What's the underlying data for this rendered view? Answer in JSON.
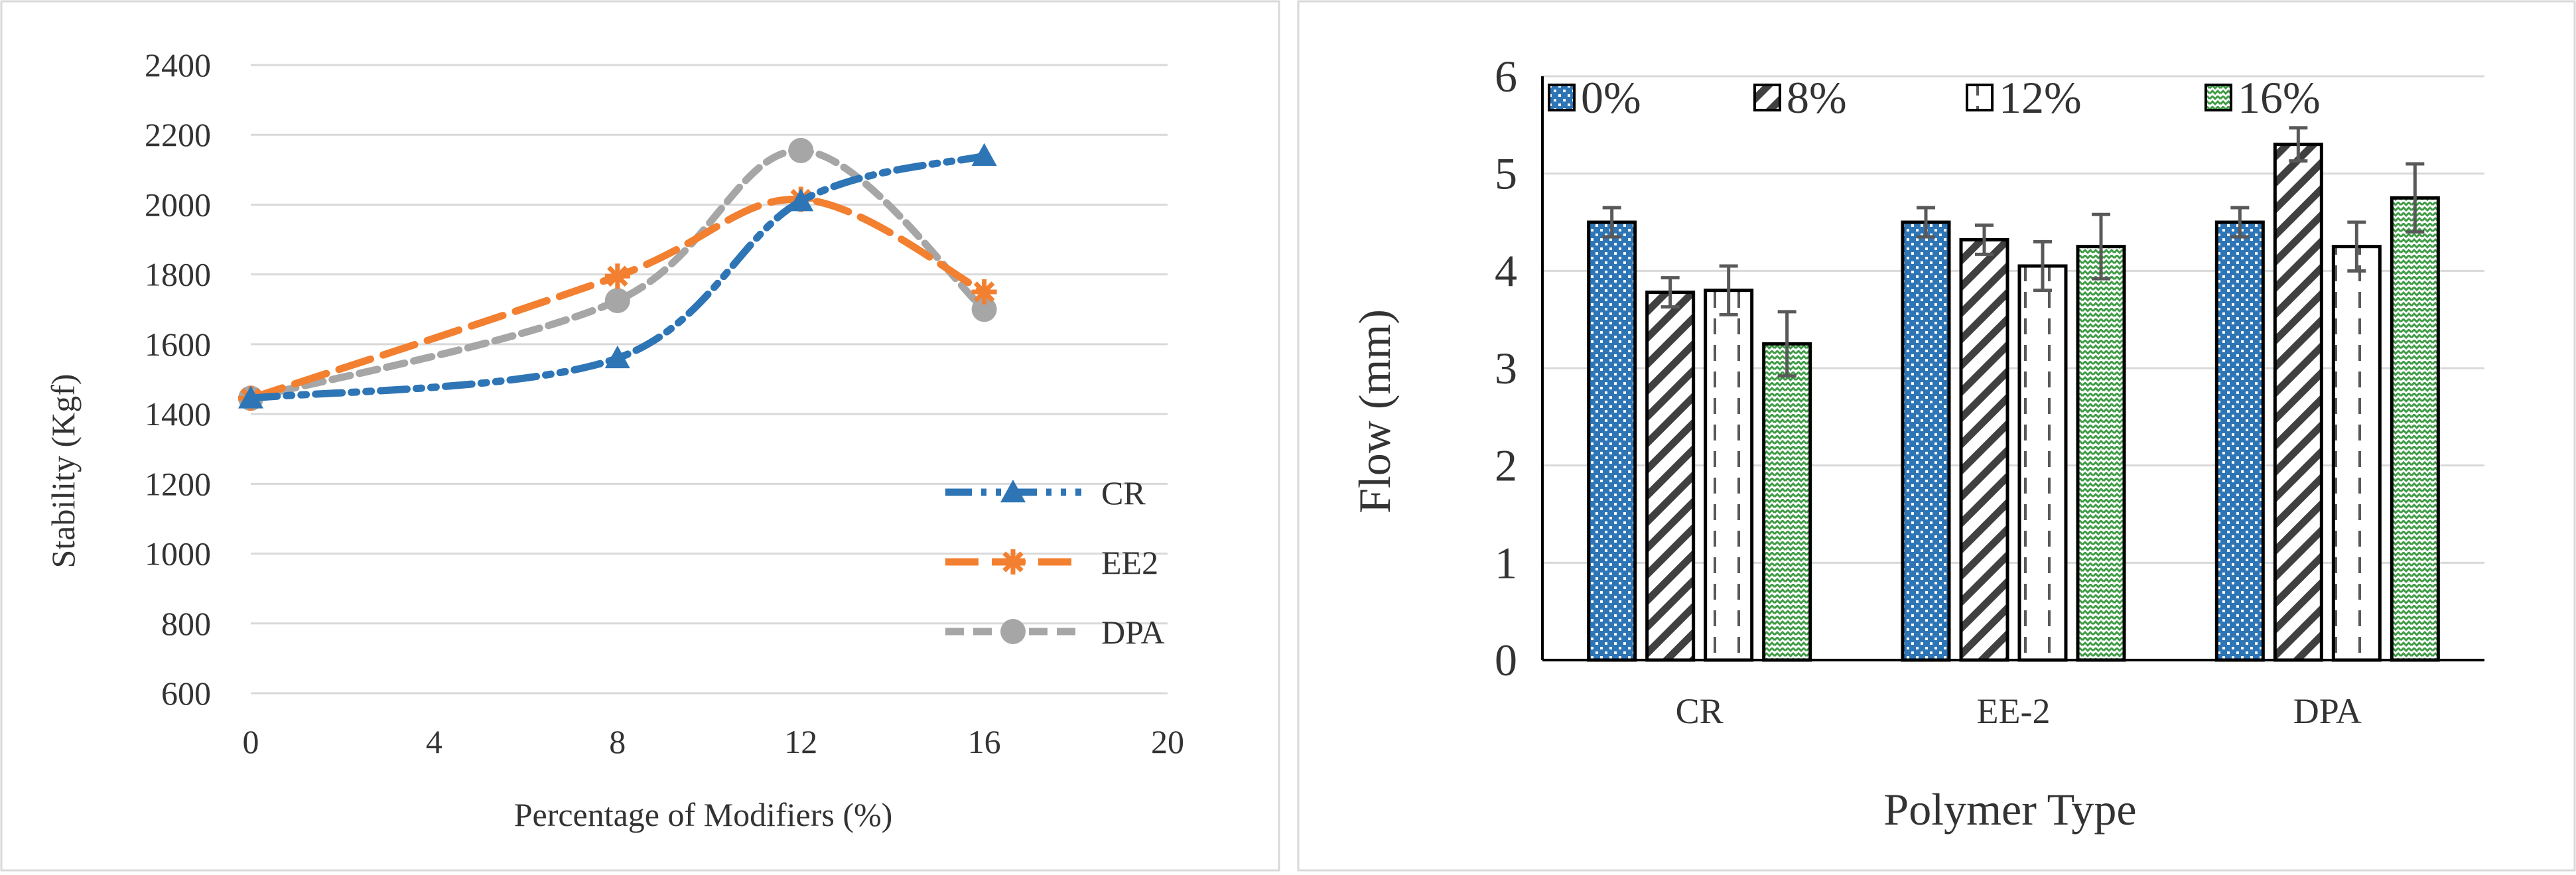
{
  "chart_data": [
    {
      "type": "line",
      "title": "",
      "xlabel": "Percentage of Modifiers (%)",
      "ylabel": "Stability (Kgf)",
      "xlim": [
        0,
        20
      ],
      "ylim": [
        600,
        2400
      ],
      "xticks": [
        0,
        4,
        8,
        12,
        16,
        20
      ],
      "yticks": [
        600,
        800,
        1000,
        1200,
        1400,
        1600,
        1800,
        2000,
        2200,
        2400
      ],
      "grid": "horizontal",
      "legend_position": "bottom-right",
      "x": [
        0,
        8,
        12,
        16
      ],
      "series": [
        {
          "name": "CR",
          "values": [
            1445,
            1560,
            2010,
            2140
          ],
          "color": "#2E75B6",
          "marker": "triangle",
          "dash": "dash-dot-dot"
        },
        {
          "name": "EE2",
          "values": [
            1445,
            1795,
            2015,
            1750
          ],
          "color": "#F28030",
          "marker": "star",
          "dash": "long-dash"
        },
        {
          "name": "DPA",
          "values": [
            1445,
            1725,
            2155,
            1700
          ],
          "color": "#A6A6A6",
          "marker": "circle",
          "dash": "dash"
        }
      ]
    },
    {
      "type": "bar",
      "title": "",
      "xlabel": "Polymer Type",
      "ylabel": "Flow (mm)",
      "ylim": [
        0,
        6
      ],
      "yticks": [
        0,
        1,
        2,
        3,
        4,
        5,
        6
      ],
      "grid": "horizontal",
      "legend_position": "top",
      "categories": [
        "CR",
        "EE-2",
        "DPA"
      ],
      "series": [
        {
          "name": "0%",
          "values": [
            4.5,
            4.5,
            4.5
          ],
          "errors": [
            0.15,
            0.15,
            0.15
          ],
          "pattern": "dots-blue"
        },
        {
          "name": "8%",
          "values": [
            3.78,
            4.32,
            5.3
          ],
          "errors": [
            0.15,
            0.15,
            0.17
          ],
          "pattern": "diagonal-dark"
        },
        {
          "name": "12%",
          "values": [
            3.8,
            4.05,
            4.25
          ],
          "errors": [
            0.25,
            0.25,
            0.25
          ],
          "pattern": "dashed-vertical"
        },
        {
          "name": "16%",
          "values": [
            3.25,
            4.25,
            4.75
          ],
          "errors": [
            0.33,
            0.33,
            0.35
          ],
          "pattern": "zigzag-green"
        }
      ]
    }
  ]
}
